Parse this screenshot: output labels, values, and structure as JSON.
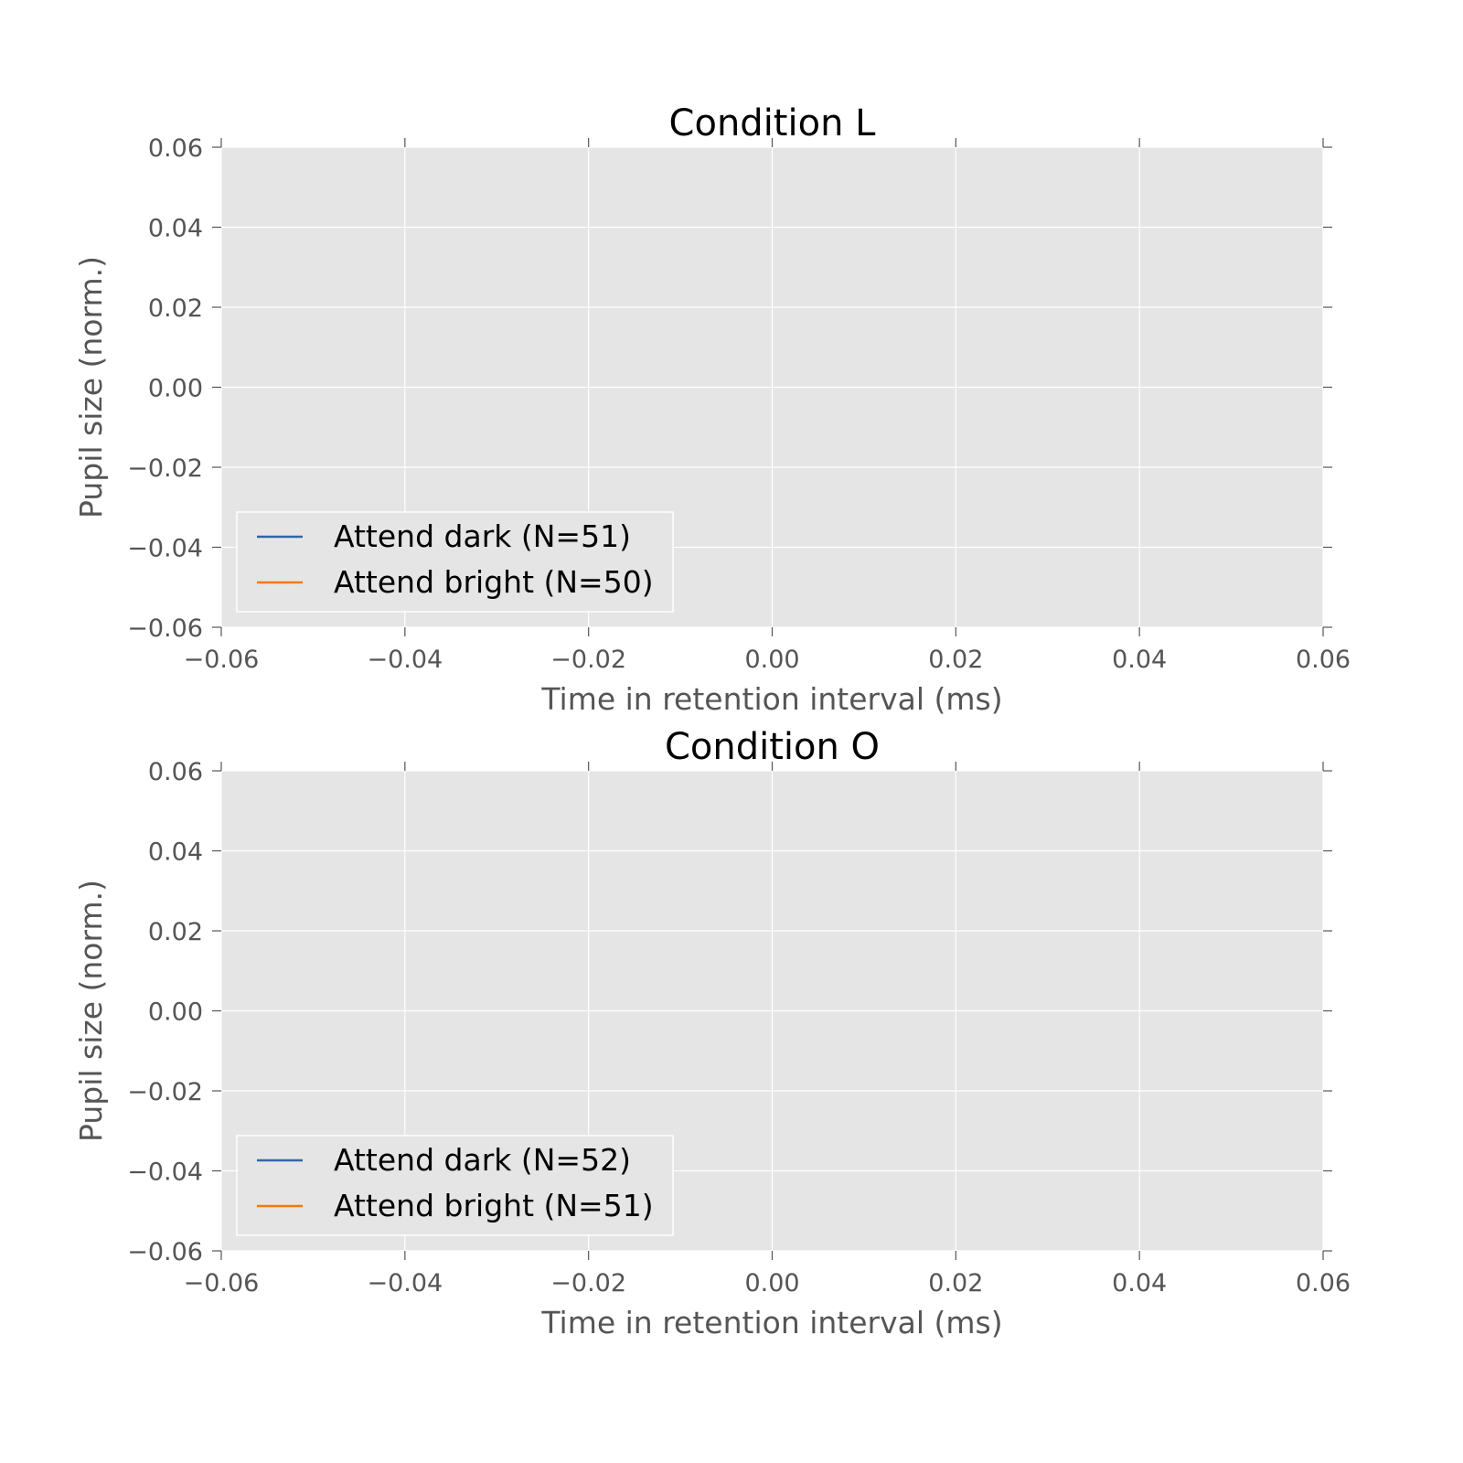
{
  "chart_data": [
    {
      "type": "line",
      "title": "Condition L",
      "xlabel": "Time in retention interval (ms)",
      "ylabel": "Pupil size (norm.)",
      "xlim": [
        -0.06,
        0.06
      ],
      "ylim": [
        -0.06,
        0.06
      ],
      "xticks": [
        -0.06,
        -0.04,
        -0.02,
        0.0,
        0.02,
        0.04,
        0.06
      ],
      "yticks": [
        -0.06,
        -0.04,
        -0.02,
        0.0,
        0.02,
        0.04,
        0.06
      ],
      "xtick_labels": [
        "−0.06",
        "−0.04",
        "−0.02",
        "0.00",
        "0.02",
        "0.04",
        "0.06"
      ],
      "ytick_labels": [
        "−0.06",
        "−0.04",
        "−0.02",
        "0.00",
        "0.02",
        "0.04",
        "0.06"
      ],
      "grid": true,
      "legend_position": "lower-left",
      "series": [
        {
          "name": "Attend dark (N=51)",
          "color": "#3465a4",
          "x": [],
          "y": []
        },
        {
          "name": "Attend bright (N=50)",
          "color": "#f57900",
          "x": [],
          "y": []
        }
      ]
    },
    {
      "type": "line",
      "title": "Condition O",
      "xlabel": "Time in retention interval (ms)",
      "ylabel": "Pupil size (norm.)",
      "xlim": [
        -0.06,
        0.06
      ],
      "ylim": [
        -0.06,
        0.06
      ],
      "xticks": [
        -0.06,
        -0.04,
        -0.02,
        0.0,
        0.02,
        0.04,
        0.06
      ],
      "yticks": [
        -0.06,
        -0.04,
        -0.02,
        0.0,
        0.02,
        0.04,
        0.06
      ],
      "xtick_labels": [
        "−0.06",
        "−0.04",
        "−0.02",
        "0.00",
        "0.02",
        "0.04",
        "0.06"
      ],
      "ytick_labels": [
        "−0.06",
        "−0.04",
        "−0.02",
        "0.00",
        "0.02",
        "0.04",
        "0.06"
      ],
      "grid": true,
      "legend_position": "lower-left",
      "series": [
        {
          "name": "Attend dark (N=52)",
          "color": "#3465a4",
          "x": [],
          "y": []
        },
        {
          "name": "Attend bright (N=51)",
          "color": "#f57900",
          "x": [],
          "y": []
        }
      ]
    }
  ]
}
